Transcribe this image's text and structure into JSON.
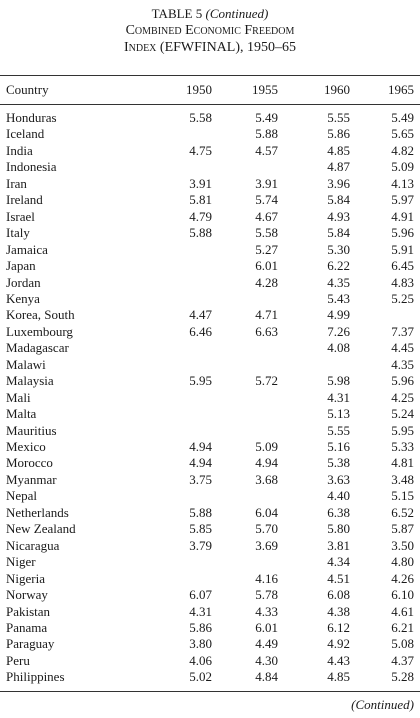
{
  "header": {
    "label": "TABLE 5",
    "continued": "(Continued)",
    "title_line1": "Combined Economic Freedom",
    "title_line2": "Index (EFWFINAL), 1950–65"
  },
  "table": {
    "columns": [
      "Country",
      "1950",
      "1955",
      "1960",
      "1965"
    ],
    "rows": [
      [
        "Honduras",
        "5.58",
        "5.49",
        "5.55",
        "5.49"
      ],
      [
        "Iceland",
        null,
        "5.88",
        "5.86",
        "5.65"
      ],
      [
        "India",
        "4.75",
        "4.57",
        "4.85",
        "4.82"
      ],
      [
        "Indonesia",
        null,
        null,
        "4.87",
        "5.09"
      ],
      [
        "Iran",
        "3.91",
        "3.91",
        "3.96",
        "4.13"
      ],
      [
        "Ireland",
        "5.81",
        "5.74",
        "5.84",
        "5.97"
      ],
      [
        "Israel",
        "4.79",
        "4.67",
        "4.93",
        "4.91"
      ],
      [
        "Italy",
        "5.88",
        "5.58",
        "5.84",
        "5.96"
      ],
      [
        "Jamaica",
        null,
        "5.27",
        "5.30",
        "5.91"
      ],
      [
        "Japan",
        null,
        "6.01",
        "6.22",
        "6.45"
      ],
      [
        "Jordan",
        null,
        "4.28",
        "4.35",
        "4.83"
      ],
      [
        "Kenya",
        null,
        null,
        "5.43",
        "5.25"
      ],
      [
        "Korea, South",
        "4.47",
        "4.71",
        "4.99",
        null
      ],
      [
        "Luxembourg",
        "6.46",
        "6.63",
        "7.26",
        "7.37"
      ],
      [
        "Madagascar",
        null,
        null,
        "4.08",
        "4.45"
      ],
      [
        "Malawi",
        null,
        null,
        null,
        "4.35"
      ],
      [
        "Malaysia",
        "5.95",
        "5.72",
        "5.98",
        "5.96"
      ],
      [
        "Mali",
        null,
        null,
        "4.31",
        "4.25"
      ],
      [
        "Malta",
        null,
        null,
        "5.13",
        "5.24"
      ],
      [
        "Mauritius",
        null,
        null,
        "5.55",
        "5.95"
      ],
      [
        "Mexico",
        "4.94",
        "5.09",
        "5.16",
        "5.33"
      ],
      [
        "Morocco",
        "4.94",
        "4.94",
        "5.38",
        "4.81"
      ],
      [
        "Myanmar",
        "3.75",
        "3.68",
        "3.63",
        "3.48"
      ],
      [
        "Nepal",
        null,
        null,
        "4.40",
        "5.15"
      ],
      [
        "Netherlands",
        "5.88",
        "6.04",
        "6.38",
        "6.52"
      ],
      [
        "New Zealand",
        "5.85",
        "5.70",
        "5.80",
        "5.87"
      ],
      [
        "Nicaragua",
        "3.79",
        "3.69",
        "3.81",
        "3.50"
      ],
      [
        "Niger",
        null,
        null,
        "4.34",
        "4.80"
      ],
      [
        "Nigeria",
        null,
        "4.16",
        "4.51",
        "4.26"
      ],
      [
        "Norway",
        "6.07",
        "5.78",
        "6.08",
        "6.10"
      ],
      [
        "Pakistan",
        "4.31",
        "4.33",
        "4.38",
        "4.61"
      ],
      [
        "Panama",
        "5.86",
        "6.01",
        "6.12",
        "6.21"
      ],
      [
        "Paraguay",
        "3.80",
        "4.49",
        "4.92",
        "5.08"
      ],
      [
        "Peru",
        "4.06",
        "4.30",
        "4.43",
        "4.37"
      ],
      [
        "Philippines",
        "5.02",
        "4.84",
        "4.85",
        "5.28"
      ]
    ]
  },
  "footer": "(Continued)"
}
